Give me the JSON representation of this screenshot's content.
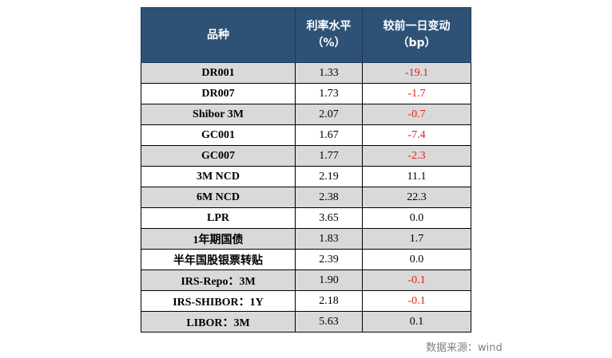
{
  "table": {
    "header": {
      "col1": "品种",
      "col2_line1": "利率水平",
      "col2_line2": "（%）",
      "col3_line1": "较前一日变动",
      "col3_line2": "（bp）"
    },
    "rows": [
      {
        "name": "DR001",
        "rate": "1.33",
        "change": "-19.1",
        "shaded": true
      },
      {
        "name": "DR007",
        "rate": "1.73",
        "change": "-1.7",
        "shaded": false
      },
      {
        "name": "Shibor 3M",
        "rate": "2.07",
        "change": "-0.7",
        "shaded": true
      },
      {
        "name": "GC001",
        "rate": "1.67",
        "change": "-7.4",
        "shaded": false
      },
      {
        "name": "GC007",
        "rate": "1.77",
        "change": "-2.3",
        "shaded": true
      },
      {
        "name": "3M NCD",
        "rate": "2.19",
        "change": "11.1",
        "shaded": false
      },
      {
        "name": "6M NCD",
        "rate": "2.38",
        "change": "22.3",
        "shaded": true
      },
      {
        "name": "LPR",
        "rate": "3.65",
        "change": "0.0",
        "shaded": false
      },
      {
        "name": "1年期国债",
        "rate": "1.83",
        "change": "1.7",
        "shaded": true
      },
      {
        "name": "半年国股银票转贴",
        "rate": "2.39",
        "change": "0.0",
        "shaded": false
      },
      {
        "name": "IRS-Repo：3M",
        "rate": "1.90",
        "change": "-0.1",
        "shaded": true
      },
      {
        "name": "IRS-SHIBOR：1Y",
        "rate": "2.18",
        "change": "-0.1",
        "shaded": false
      },
      {
        "name": "LIBOR：3M",
        "rate": "5.63",
        "change": "0.1",
        "shaded": true
      }
    ]
  },
  "source": "数据来源：wind",
  "colors": {
    "header_bg": "#2e5275",
    "row_shade": "#d9d9d9",
    "negative": "#e0201c"
  }
}
